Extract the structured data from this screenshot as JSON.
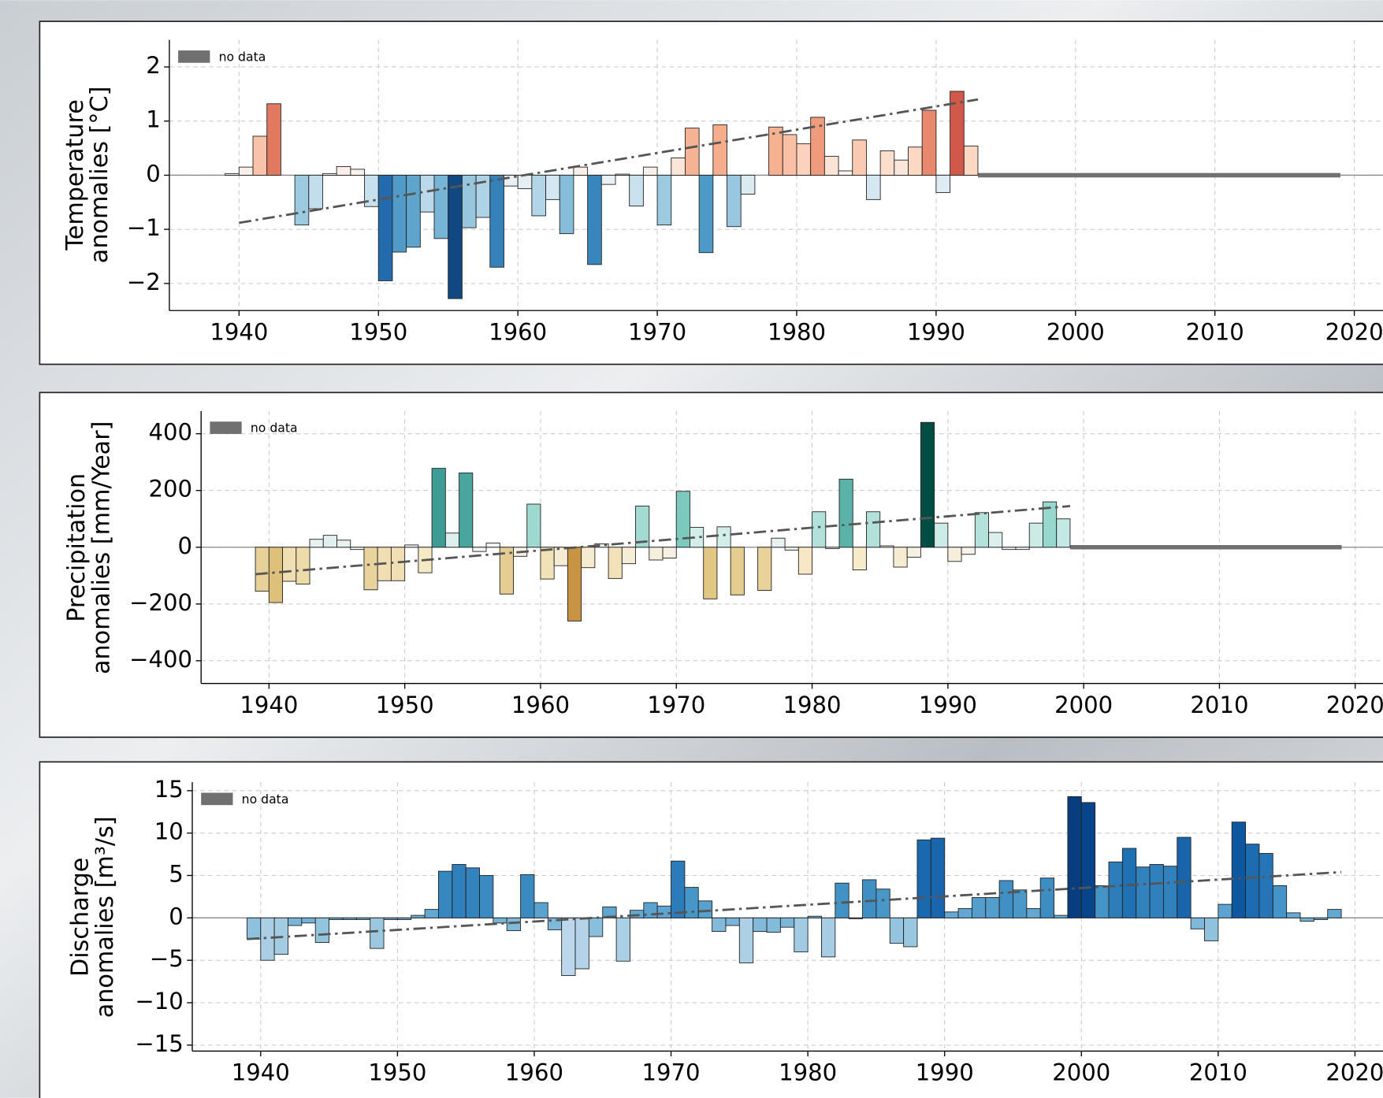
{
  "chart_data": [
    {
      "type": "bar",
      "ylabel": [
        "Temperature",
        "anomalies [°C]"
      ],
      "x": [
        1939,
        1940,
        1941,
        1942,
        1943,
        1944,
        1945,
        1946,
        1947,
        1948,
        1949,
        1950,
        1951,
        1952,
        1953,
        1954,
        1955,
        1956,
        1957,
        1958,
        1959,
        1960,
        1961,
        1962,
        1963,
        1964,
        1965,
        1966,
        1967,
        1968,
        1969,
        1970,
        1971,
        1972,
        1973,
        1974,
        1975,
        1976,
        1977,
        1978,
        1979,
        1980,
        1981,
        1982,
        1983,
        1984,
        1985,
        1986,
        1987,
        1988,
        1989,
        1990,
        1991,
        1992
      ],
      "values": [
        0.03,
        0.15,
        0.72,
        1.32,
        0,
        -0.92,
        -0.62,
        0.03,
        0.16,
        0.11,
        -0.58,
        -1.95,
        -1.42,
        -1.33,
        -0.68,
        -1.17,
        -2.28,
        -0.97,
        -0.78,
        -1.7,
        -0.2,
        -0.25,
        -0.75,
        -0.45,
        -1.08,
        0.15,
        -1.65,
        -0.17,
        0.02,
        -0.57,
        0.15,
        -0.92,
        0.32,
        0.87,
        -1.43,
        0.93,
        -0.95,
        -0.35,
        0,
        0.89,
        0.75,
        0.58,
        1.07,
        0.35,
        0.08,
        0.65,
        -0.45,
        0.45,
        0.28,
        0.52,
        1.2,
        -0.32,
        1.55,
        0.54
      ],
      "colors": [
        "#053061",
        "#2166ac",
        "#4393c3",
        "#92c5de",
        "#d1e5f0",
        "#f7f7f7",
        "#fddbc7",
        "#f4a582",
        "#d6604d",
        "#b2182b",
        "#67001f"
      ],
      "xlim": [
        1935,
        2022.5
      ],
      "xticks": [
        1940,
        1950,
        1960,
        1970,
        1980,
        1990,
        2000,
        2010,
        2020
      ],
      "ylim": [
        -2.5,
        2.5
      ],
      "yticks": [
        {
          "value": -2,
          "label": "−2"
        },
        {
          "value": -1,
          "label": "−1"
        },
        0,
        1,
        2
      ],
      "no_data": {
        "label": "no data",
        "x": [
          1993,
          2019
        ],
        "color": "#707070"
      },
      "trend": {
        "x": [
          1940,
          1993
        ],
        "values": [
          -0.88,
          1.4
        ]
      },
      "grid": true
    },
    {
      "type": "bar",
      "ylabel": [
        "Precipitation",
        "anomalies [mm/Year]"
      ],
      "x": [
        1939,
        1940,
        1941,
        1942,
        1943,
        1944,
        1945,
        1946,
        1947,
        1948,
        1949,
        1950,
        1951,
        1952,
        1953,
        1954,
        1955,
        1956,
        1957,
        1958,
        1959,
        1960,
        1961,
        1962,
        1963,
        1964,
        1965,
        1966,
        1967,
        1968,
        1969,
        1970,
        1971,
        1972,
        1973,
        1974,
        1975,
        1976,
        1977,
        1978,
        1979,
        1980,
        1981,
        1982,
        1983,
        1984,
        1985,
        1986,
        1987,
        1988,
        1989,
        1990,
        1991,
        1992,
        1993,
        1994,
        1995,
        1996,
        1997,
        1998
      ],
      "values": [
        -155,
        -195,
        -120,
        -130,
        28,
        42,
        25,
        -8,
        -150,
        -118,
        -118,
        8,
        -90,
        278,
        50,
        262,
        -15,
        15,
        -165,
        -32,
        152,
        -112,
        -65,
        -260,
        -72,
        12,
        -110,
        -58,
        145,
        -45,
        -38,
        197,
        70,
        -182,
        72,
        -168,
        0,
        -152,
        32,
        -10,
        -95,
        125,
        -5,
        240,
        -80,
        125,
        5,
        -70,
        -35,
        440,
        85,
        -50,
        -25,
        122,
        52,
        -8,
        -8,
        85,
        160,
        100
      ],
      "colors": [
        "#543005",
        "#8c510a",
        "#bf812d",
        "#dfc27d",
        "#f6e8c3",
        "#f5f5f5",
        "#c7eae5",
        "#80cdc1",
        "#35978f",
        "#01665e",
        "#003c30"
      ],
      "xlim": [
        1935,
        2022.5
      ],
      "xticks": [
        1940,
        1950,
        1960,
        1970,
        1980,
        1990,
        2000,
        2010,
        2020
      ],
      "ylim": [
        -480,
        480
      ],
      "yticks": [
        {
          "value": -400,
          "label": "−400"
        },
        {
          "value": -200,
          "label": "−200"
        },
        0,
        200,
        400
      ],
      "no_data": {
        "label": "no data",
        "x": [
          1999,
          2019
        ],
        "color": "#707070"
      },
      "trend": {
        "x": [
          1939,
          1999
        ],
        "values": [
          -95,
          145
        ]
      },
      "grid": true
    },
    {
      "type": "bar",
      "ylabel": [
        "Discharge",
        "anomalies [m³/s]"
      ],
      "x": [
        1939,
        1940,
        1941,
        1942,
        1943,
        1944,
        1945,
        1946,
        1947,
        1948,
        1949,
        1950,
        1951,
        1952,
        1953,
        1954,
        1955,
        1956,
        1957,
        1958,
        1959,
        1960,
        1961,
        1962,
        1963,
        1964,
        1965,
        1966,
        1967,
        1968,
        1969,
        1970,
        1971,
        1972,
        1973,
        1974,
        1975,
        1976,
        1977,
        1978,
        1979,
        1980,
        1981,
        1982,
        1983,
        1984,
        1985,
        1986,
        1987,
        1988,
        1989,
        1990,
        1991,
        1992,
        1993,
        1994,
        1995,
        1996,
        1997,
        1998,
        1999,
        2000,
        2001,
        2002,
        2003,
        2004,
        2005,
        2006,
        2007,
        2008,
        2009,
        2010,
        2011,
        2012,
        2013,
        2014,
        2015,
        2016,
        2017,
        2018
      ],
      "values": [
        -2.5,
        -5,
        -4.3,
        -0.9,
        -0.6,
        -2.9,
        -0.2,
        -0.2,
        -0.2,
        -3.6,
        -0.2,
        -0.2,
        0.3,
        1,
        5.5,
        6.3,
        5.9,
        5,
        -0.6,
        -1.5,
        5.1,
        1.8,
        -1.4,
        -6.8,
        -6,
        -2.2,
        1.3,
        -5.1,
        0.9,
        1.8,
        1.4,
        6.7,
        3.6,
        2,
        -1.6,
        -0.9,
        -5.3,
        -1.6,
        -1.7,
        -1.1,
        -4,
        0.2,
        -4.6,
        4.1,
        -0.1,
        4.5,
        3.4,
        -3,
        -3.4,
        9.2,
        9.4,
        0.7,
        1.1,
        2.4,
        2.4,
        4.4,
        3.3,
        1.1,
        4.7,
        0.3,
        14.3,
        13.6,
        3.8,
        6.6,
        8.2,
        6,
        6.3,
        6.1,
        9.5,
        -1.3,
        -2.7,
        1.6,
        11.3,
        8.7,
        7.6,
        3.8,
        0.6,
        -0.4,
        -0.2,
        1
      ],
      "colors": [
        "#f7fbff",
        "#deebf7",
        "#c6dbef",
        "#9ecae1",
        "#6baed6",
        "#4292c6",
        "#2171b5",
        "#08519c",
        "#08306b"
      ],
      "xlim": [
        1935,
        2022.5
      ],
      "xticks": [
        1940,
        1950,
        1960,
        1970,
        1980,
        1990,
        2000,
        2010,
        2020
      ],
      "ylim": [
        -15.7,
        16
      ],
      "yticks": [
        {
          "value": -15,
          "label": "−15"
        },
        {
          "value": -10,
          "label": "−10"
        },
        {
          "value": -5,
          "label": "−5"
        },
        0,
        5,
        10,
        15
      ],
      "no_data": {
        "label": "no data",
        "color": "#707070"
      },
      "trend": {
        "x": [
          1939,
          2019
        ],
        "values": [
          -2.5,
          5.4
        ]
      },
      "grid": true
    }
  ]
}
